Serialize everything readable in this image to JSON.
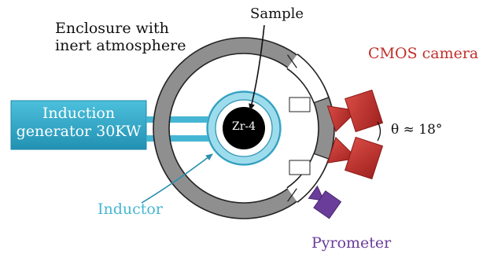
{
  "labels": {
    "enclosure_line1": "Enclosure with",
    "enclosure_line2": "inert atmosphere",
    "sample": "Sample",
    "sample_material": "Zr-4",
    "generator_line1": "Induction",
    "generator_line2": "generator 30KW",
    "inductor": "Inductor",
    "cameras": "CMOS cameras",
    "pyrometer": "Pyrometer",
    "angle": "θ ≈ 18°"
  },
  "colors": {
    "generator": "#2fa8c8",
    "inductor": "#46b6d4",
    "cameras": "#c0302c",
    "pyrometer": "#6a3d9a",
    "enclosure_ring": "#8f8f8f",
    "sample": "#000000"
  }
}
